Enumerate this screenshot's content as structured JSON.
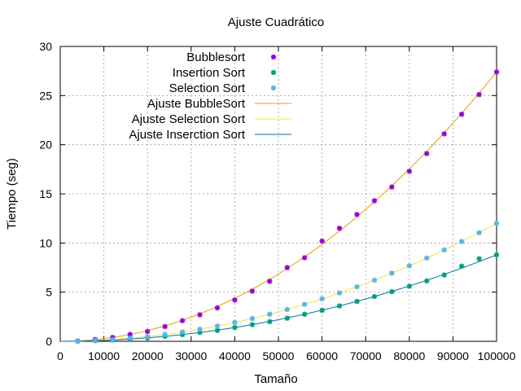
{
  "chart_data": {
    "type": "scatter",
    "title": "Ajuste Cuadrático",
    "xlabel": "Tamaño",
    "ylabel": "Tiempo (seg)",
    "xlim": [
      0,
      100000
    ],
    "ylim": [
      0,
      30
    ],
    "xticks": [
      0,
      10000,
      20000,
      30000,
      40000,
      50000,
      60000,
      70000,
      80000,
      90000,
      100000
    ],
    "yticks": [
      0,
      5,
      10,
      15,
      20,
      25,
      30
    ],
    "grid": true,
    "legend_position": "top-left",
    "series": [
      {
        "name": "Bubblesort",
        "kind": "points",
        "color": "#9400d3",
        "x": [
          4000,
          8000,
          12000,
          16000,
          20000,
          24000,
          28000,
          32000,
          36000,
          40000,
          44000,
          48000,
          52000,
          56000,
          60000,
          64000,
          68000,
          72000,
          76000,
          80000,
          84000,
          88000,
          92000,
          96000,
          100000
        ],
        "y": [
          0.04,
          0.18,
          0.39,
          0.7,
          1.0,
          1.5,
          2.1,
          2.7,
          3.4,
          4.2,
          5.1,
          6.1,
          7.5,
          8.5,
          10.2,
          11.5,
          12.9,
          14.3,
          15.7,
          17.3,
          19.1,
          21.1,
          23.1,
          25.1,
          27.4
        ]
      },
      {
        "name": "Insertion Sort",
        "kind": "points",
        "color": "#009e73",
        "x": [
          4000,
          8000,
          12000,
          16000,
          20000,
          24000,
          28000,
          32000,
          36000,
          40000,
          44000,
          48000,
          52000,
          56000,
          60000,
          64000,
          68000,
          72000,
          76000,
          80000,
          84000,
          88000,
          92000,
          96000,
          100000
        ],
        "y": [
          0.01,
          0.06,
          0.13,
          0.22,
          0.35,
          0.5,
          0.68,
          0.9,
          1.1,
          1.4,
          1.7,
          2.0,
          2.35,
          2.75,
          3.15,
          3.6,
          4.05,
          4.55,
          5.05,
          5.6,
          6.15,
          6.75,
          7.65,
          8.4,
          8.8
        ]
      },
      {
        "name": "Selection Sort",
        "kind": "points",
        "color": "#56b4e9",
        "x": [
          4000,
          8000,
          12000,
          16000,
          20000,
          24000,
          28000,
          32000,
          36000,
          40000,
          44000,
          48000,
          52000,
          56000,
          60000,
          64000,
          68000,
          72000,
          76000,
          80000,
          84000,
          88000,
          92000,
          96000,
          100000
        ],
        "y": [
          0.02,
          0.08,
          0.18,
          0.31,
          0.48,
          0.7,
          0.95,
          1.23,
          1.55,
          1.92,
          2.32,
          2.76,
          3.24,
          3.76,
          4.32,
          4.92,
          5.55,
          6.22,
          6.93,
          7.68,
          8.47,
          9.29,
          10.15,
          11.05,
          12.0
        ]
      },
      {
        "name": "Ajuste BubbleSort",
        "kind": "fit",
        "color": "#e69f00",
        "coeffs": [
          0.0,
          0.0,
          2.74e-09
        ]
      },
      {
        "name": "Ajuste Selection Sort",
        "kind": "fit",
        "color": "#f0e442",
        "coeffs": [
          0.0,
          0.0,
          1.2e-09
        ]
      },
      {
        "name": "Ajuste Inserction Sort",
        "kind": "fit",
        "color": "#0072b2",
        "coeffs": [
          0.0,
          0.0,
          8.8e-10
        ]
      }
    ]
  }
}
